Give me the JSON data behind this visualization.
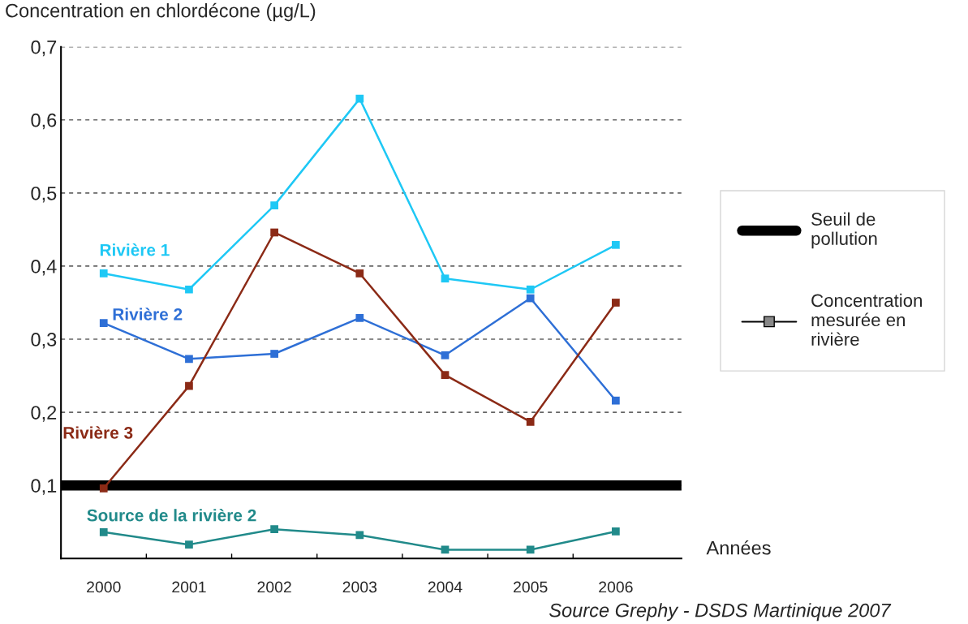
{
  "chart_data": {
    "type": "line",
    "ylabel": "Concentration en chlordécone (µg/L)",
    "xlabel": "Années",
    "categories": [
      "2000",
      "2001",
      "2002",
      "2003",
      "2004",
      "2005",
      "2006"
    ],
    "series": [
      {
        "name": "Rivière 1",
        "color": "#1ec8f5",
        "values": [
          0.39,
          0.368,
          0.483,
          0.629,
          0.383,
          0.368,
          0.429
        ]
      },
      {
        "name": "Rivière 2",
        "color": "#2e6fd6",
        "values": [
          0.322,
          0.273,
          0.28,
          0.329,
          0.278,
          0.356,
          0.216
        ]
      },
      {
        "name": "Rivière 3",
        "color": "#8b2a16",
        "values": [
          0.096,
          0.236,
          0.446,
          0.39,
          0.251,
          0.187,
          0.35
        ]
      },
      {
        "name": "Source de la rivière 2",
        "color": "#218a8a",
        "values": [
          0.036,
          0.019,
          0.04,
          0.032,
          0.012,
          0.012,
          0.037
        ]
      }
    ],
    "ylim": [
      0,
      0.7
    ],
    "yticks": [
      {
        "value": 0.1,
        "label": "0,1"
      },
      {
        "value": 0.2,
        "label": "0,2"
      },
      {
        "value": 0.3,
        "label": "0,3"
      },
      {
        "value": 0.4,
        "label": "0,4"
      },
      {
        "value": 0.5,
        "label": "0,5"
      },
      {
        "value": 0.6,
        "label": "0,6"
      },
      {
        "value": 0.7,
        "label": "0,7"
      }
    ],
    "ref_lines": [
      {
        "axis": "y",
        "value": 0.1,
        "label": "Seuil de pollution",
        "color": "#000000"
      }
    ],
    "annotations": [
      "Concentration mesurée en rivière",
      "Source Grephy - DSDS Martinique 2007"
    ],
    "grid": "y",
    "legend": "right",
    "marker": "square",
    "line_style": "solid"
  }
}
